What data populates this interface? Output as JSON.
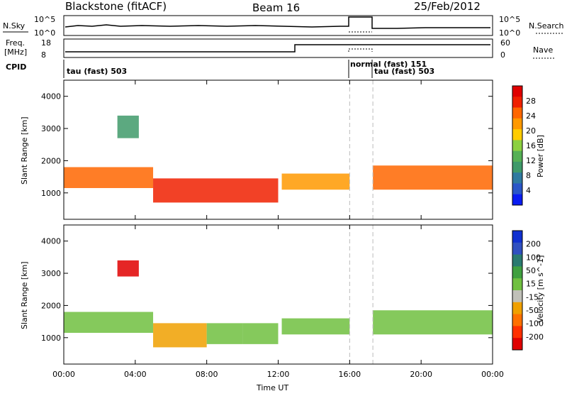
{
  "header": {
    "station": "Blackstone (fitACF)",
    "beam": "Beam 16",
    "date": "25/Feb/2012"
  },
  "top_panel": {
    "nsky_label": "N.Sky",
    "nsky_ticks": [
      "10^5",
      "10^0"
    ],
    "nsearch_label": "N.Search",
    "nsearch_ticks": [
      "10^5",
      "10^0"
    ],
    "freq_label_line1": "Freq.",
    "freq_label_line2": "[MHz]",
    "freq_ticks": [
      "18",
      "8"
    ],
    "nave_label": "Nave",
    "nave_ticks": [
      "60",
      "0"
    ],
    "cpid_label": "CPID",
    "cpid_segments": [
      {
        "label": "tau (fast) 503",
        "start_hr": 0.0
      },
      {
        "label": "normal (fast) 151",
        "start_hr": 16.0
      },
      {
        "label": "tau (fast) 503",
        "start_hr": 17.3
      }
    ]
  },
  "chart_data": [
    {
      "type": "heatmap",
      "title": "",
      "ylabel": "Slant Range [km]",
      "xlabel": "",
      "xlim": [
        0,
        24
      ],
      "ylim": [
        180,
        4500
      ],
      "yticks": [
        1000,
        2000,
        3000,
        4000
      ],
      "colorbar_label": "Power [dB]",
      "colorbar_ticks": [
        4,
        8,
        12,
        16,
        20,
        24,
        28
      ],
      "colorbar_colors": [
        "#0a1cf2",
        "#2a56c8",
        "#2f7aa0",
        "#3f9a6a",
        "#55b055",
        "#8cd040",
        "#ffcc00",
        "#ff9900",
        "#ff6600",
        "#f02000",
        "#e00000"
      ],
      "echo_bands": [
        {
          "t0": 0.0,
          "t1": 5.0,
          "r0": 1150,
          "r1": 1800,
          "value": 22
        },
        {
          "t0": 5.0,
          "t1": 12.0,
          "r0": 700,
          "r1": 1450,
          "value": 26
        },
        {
          "t0": 12.2,
          "t1": 16.0,
          "r0": 1100,
          "r1": 1600,
          "value": 20
        },
        {
          "t0": 17.3,
          "t1": 24.0,
          "r0": 1100,
          "r1": 1850,
          "value": 22
        },
        {
          "t0": 3.0,
          "t1": 4.2,
          "r0": 2700,
          "r1": 3400,
          "value": 12
        }
      ]
    },
    {
      "type": "heatmap",
      "title": "",
      "ylabel": "Slant Range [km]",
      "xlabel": "Time UT",
      "xlim": [
        0,
        24
      ],
      "ylim": [
        180,
        4500
      ],
      "yticks": [
        1000,
        2000,
        3000,
        4000
      ],
      "xticks": [
        "00:00",
        "04:00",
        "08:00",
        "12:00",
        "16:00",
        "20:00",
        "00:00"
      ],
      "colorbar_label": "Velocity [m s^-1]",
      "colorbar_ticks": [
        200,
        100,
        50,
        15,
        -15,
        -50,
        -100,
        -200
      ],
      "colorbar_colors": [
        "#1030d0",
        "#3050c0",
        "#2a7a70",
        "#40a040",
        "#70c040",
        "#c0c0b8",
        "#f0a000",
        "#ff7000",
        "#ff3000",
        "#e00000"
      ],
      "echo_bands": [
        {
          "t0": 0.0,
          "t1": 5.0,
          "r0": 1150,
          "r1": 1800,
          "value": 0
        },
        {
          "t0": 5.0,
          "t1": 8.0,
          "r0": 700,
          "r1": 1450,
          "value": -50
        },
        {
          "t0": 8.0,
          "t1": 10.0,
          "r0": 800,
          "r1": 1450,
          "value": 40
        },
        {
          "t0": 10.0,
          "t1": 12.0,
          "r0": 800,
          "r1": 1450,
          "value": 0
        },
        {
          "t0": 12.2,
          "t1": 16.0,
          "r0": 1100,
          "r1": 1600,
          "value": 0
        },
        {
          "t0": 17.3,
          "t1": 24.0,
          "r0": 1100,
          "r1": 1850,
          "value": 0
        },
        {
          "t0": 3.0,
          "t1": 4.2,
          "r0": 2900,
          "r1": 3400,
          "value": -180
        }
      ]
    }
  ]
}
